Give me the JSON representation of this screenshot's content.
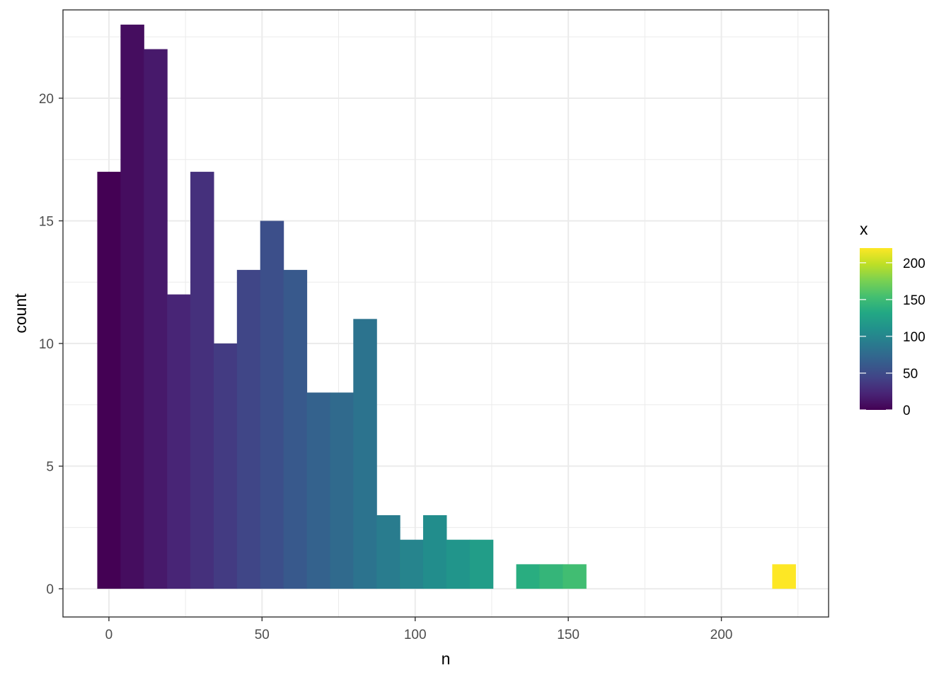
{
  "chart_data": {
    "type": "histogram",
    "xlabel": "n",
    "ylabel": "count",
    "xlim": [
      -15,
      235
    ],
    "ylim": [
      -1.15,
      23.6
    ],
    "x_ticks": [
      0,
      50,
      100,
      150,
      200
    ],
    "x_minor": [
      25,
      75,
      125,
      175,
      225
    ],
    "y_ticks": [
      0,
      5,
      10,
      15,
      20
    ],
    "y_minor": [
      2.5,
      7.5,
      12.5,
      17.5,
      22.5
    ],
    "bin_width": 7.6,
    "bins": [
      {
        "x": 0,
        "count": 17
      },
      {
        "x": 7.6,
        "count": 23
      },
      {
        "x": 15.2,
        "count": 22
      },
      {
        "x": 22.8,
        "count": 12
      },
      {
        "x": 30.4,
        "count": 17
      },
      {
        "x": 38.0,
        "count": 10
      },
      {
        "x": 45.6,
        "count": 13
      },
      {
        "x": 53.2,
        "count": 15
      },
      {
        "x": 60.8,
        "count": 13
      },
      {
        "x": 68.4,
        "count": 8
      },
      {
        "x": 76.0,
        "count": 8
      },
      {
        "x": 83.6,
        "count": 11
      },
      {
        "x": 91.2,
        "count": 3
      },
      {
        "x": 98.8,
        "count": 2
      },
      {
        "x": 106.4,
        "count": 3
      },
      {
        "x": 114.0,
        "count": 2
      },
      {
        "x": 121.6,
        "count": 2
      },
      {
        "x": 129.2,
        "count": 0
      },
      {
        "x": 136.8,
        "count": 1
      },
      {
        "x": 144.4,
        "count": 1
      },
      {
        "x": 152.0,
        "count": 1
      },
      {
        "x": 220.4,
        "count": 1
      }
    ],
    "grid": true,
    "legend": {
      "title": "x",
      "position": "right",
      "type": "colorbar",
      "range": [
        0,
        220
      ],
      "breaks": [
        0,
        50,
        100,
        150,
        200
      ],
      "palette": "viridis"
    },
    "colors": {
      "panel_border": "#333333",
      "grid": "#ebebeb",
      "tick_text": "#4d4d4d"
    }
  }
}
